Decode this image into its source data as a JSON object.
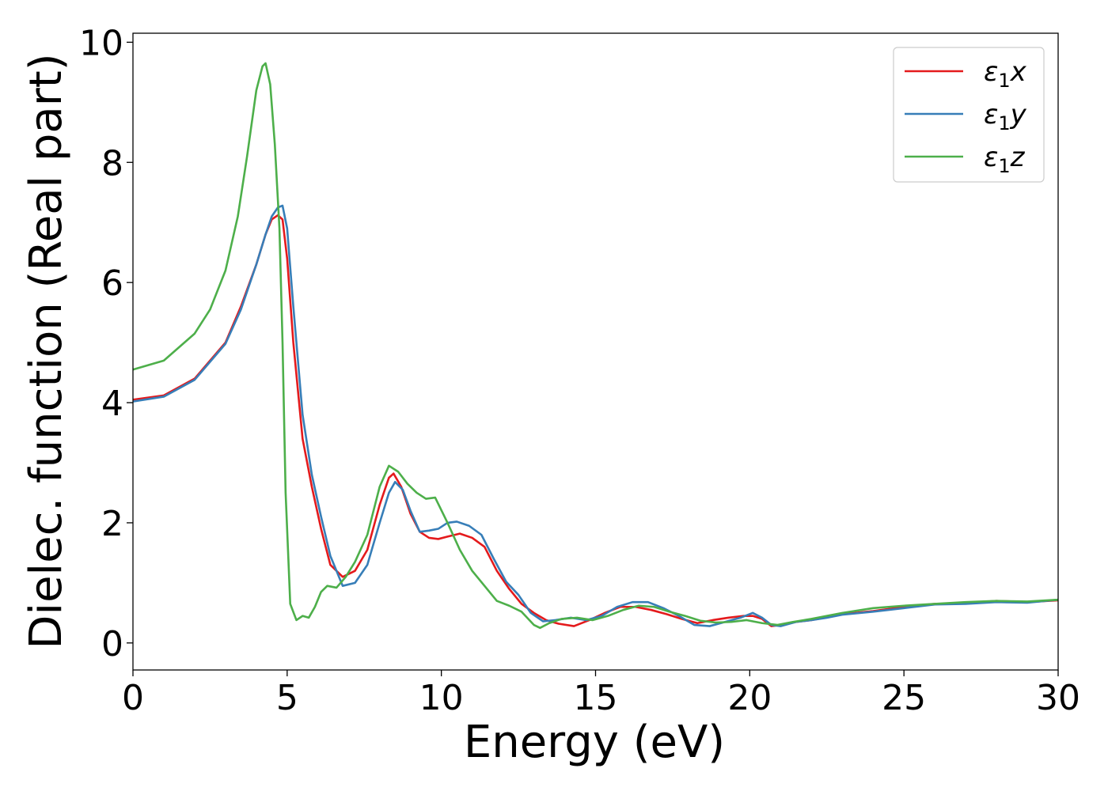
{
  "chart_data": {
    "type": "line",
    "title": "",
    "xlabel": "Energy (eV)",
    "ylabel": "Dielec. function (Real part)",
    "xlim": [
      0,
      30
    ],
    "ylim": [
      -0.45,
      10.15
    ],
    "xticks": [
      0,
      5,
      10,
      15,
      20,
      25,
      30
    ],
    "yticks": [
      0,
      2,
      4,
      6,
      8,
      10
    ],
    "grid": false,
    "legend_position": "top-right",
    "series": [
      {
        "name": "ε₁x",
        "legend_main": "ε",
        "legend_sub": "1",
        "legend_var": "x",
        "color": "#e41a1c",
        "x": [
          0,
          1,
          2,
          3,
          3.5,
          4,
          4.3,
          4.5,
          4.7,
          4.85,
          5.0,
          5.2,
          5.5,
          5.8,
          6.1,
          6.4,
          6.8,
          7.2,
          7.6,
          8.0,
          8.3,
          8.45,
          8.7,
          9.0,
          9.3,
          9.6,
          9.9,
          10.2,
          10.6,
          11.0,
          11.4,
          11.8,
          12.2,
          12.6,
          13.0,
          13.4,
          13.8,
          14.3,
          14.8,
          15.3,
          15.8,
          16.3,
          16.8,
          17.3,
          17.8,
          18.3,
          18.8,
          19.3,
          19.8,
          20.1,
          20.4,
          20.7,
          21.0,
          21.5,
          22.0,
          22.5,
          23.0,
          24.0,
          25.0,
          26.0,
          27.0,
          28.0,
          29.0,
          30.0
        ],
        "y": [
          4.05,
          4.12,
          4.4,
          5.0,
          5.6,
          6.3,
          6.8,
          7.05,
          7.12,
          7.05,
          6.4,
          5.0,
          3.4,
          2.6,
          1.9,
          1.3,
          1.1,
          1.2,
          1.55,
          2.3,
          2.75,
          2.82,
          2.6,
          2.15,
          1.85,
          1.75,
          1.73,
          1.77,
          1.82,
          1.75,
          1.6,
          1.2,
          0.9,
          0.65,
          0.5,
          0.38,
          0.32,
          0.28,
          0.38,
          0.5,
          0.6,
          0.6,
          0.55,
          0.48,
          0.4,
          0.33,
          0.38,
          0.42,
          0.45,
          0.45,
          0.4,
          0.28,
          0.3,
          0.35,
          0.38,
          0.43,
          0.48,
          0.53,
          0.6,
          0.65,
          0.66,
          0.7,
          0.68,
          0.71
        ]
      },
      {
        "name": "ε₁y",
        "legend_main": "ε",
        "legend_sub": "1",
        "legend_var": "y",
        "color": "#377eb8",
        "x": [
          0,
          1,
          2,
          3,
          3.5,
          4,
          4.3,
          4.5,
          4.7,
          4.85,
          5.0,
          5.2,
          5.5,
          5.8,
          6.1,
          6.4,
          6.8,
          7.2,
          7.6,
          8.0,
          8.3,
          8.5,
          8.75,
          9.0,
          9.3,
          9.6,
          9.9,
          10.2,
          10.5,
          10.9,
          11.3,
          11.7,
          12.1,
          12.5,
          12.9,
          13.3,
          13.7,
          14.2,
          14.7,
          15.2,
          15.7,
          16.2,
          16.7,
          17.2,
          17.7,
          18.2,
          18.7,
          19.2,
          19.7,
          20.1,
          20.4,
          20.7,
          21.0,
          21.5,
          22.0,
          22.5,
          23.0,
          24.0,
          25.0,
          26.0,
          27.0,
          28.0,
          29.0,
          30.0
        ],
        "y": [
          4.02,
          4.1,
          4.38,
          4.98,
          5.55,
          6.3,
          6.8,
          7.1,
          7.25,
          7.28,
          6.9,
          5.6,
          3.8,
          2.8,
          2.1,
          1.45,
          0.95,
          1.0,
          1.3,
          2.0,
          2.5,
          2.68,
          2.55,
          2.2,
          1.85,
          1.87,
          1.9,
          2.0,
          2.02,
          1.95,
          1.8,
          1.4,
          1.02,
          0.8,
          0.5,
          0.36,
          0.38,
          0.42,
          0.38,
          0.45,
          0.6,
          0.68,
          0.68,
          0.58,
          0.45,
          0.3,
          0.28,
          0.35,
          0.42,
          0.5,
          0.42,
          0.3,
          0.28,
          0.35,
          0.38,
          0.42,
          0.47,
          0.52,
          0.58,
          0.64,
          0.65,
          0.68,
          0.67,
          0.72
        ]
      },
      {
        "name": "ε₁z",
        "legend_main": "ε",
        "legend_sub": "1",
        "legend_var": "z",
        "color": "#4daf4a",
        "x": [
          0,
          1,
          2,
          2.5,
          3,
          3.4,
          3.7,
          4.0,
          4.2,
          4.3,
          4.45,
          4.6,
          4.75,
          4.85,
          4.95,
          5.1,
          5.3,
          5.5,
          5.7,
          5.9,
          6.1,
          6.3,
          6.6,
          6.9,
          7.2,
          7.6,
          8.0,
          8.3,
          8.6,
          8.9,
          9.2,
          9.5,
          9.8,
          10.2,
          10.6,
          11.0,
          11.4,
          11.8,
          12.2,
          12.6,
          13.0,
          13.2,
          13.5,
          13.9,
          14.4,
          14.9,
          15.4,
          15.9,
          16.4,
          16.9,
          17.4,
          17.9,
          18.4,
          18.9,
          19.4,
          19.9,
          20.4,
          20.9,
          21.4,
          22.0,
          22.5,
          23.0,
          24.0,
          25.0,
          26.0,
          27.0,
          28.0,
          29.0,
          30.0
        ],
        "y": [
          4.55,
          4.7,
          5.15,
          5.55,
          6.2,
          7.1,
          8.1,
          9.2,
          9.6,
          9.65,
          9.3,
          8.3,
          6.9,
          5.0,
          2.5,
          0.65,
          0.38,
          0.45,
          0.42,
          0.6,
          0.85,
          0.95,
          0.92,
          1.1,
          1.35,
          1.8,
          2.6,
          2.95,
          2.85,
          2.65,
          2.5,
          2.4,
          2.42,
          2.0,
          1.55,
          1.2,
          0.95,
          0.7,
          0.62,
          0.52,
          0.3,
          0.25,
          0.33,
          0.4,
          0.42,
          0.38,
          0.45,
          0.55,
          0.62,
          0.6,
          0.52,
          0.45,
          0.37,
          0.34,
          0.35,
          0.38,
          0.33,
          0.3,
          0.35,
          0.4,
          0.45,
          0.5,
          0.58,
          0.62,
          0.65,
          0.68,
          0.7,
          0.69,
          0.72
        ]
      }
    ]
  }
}
